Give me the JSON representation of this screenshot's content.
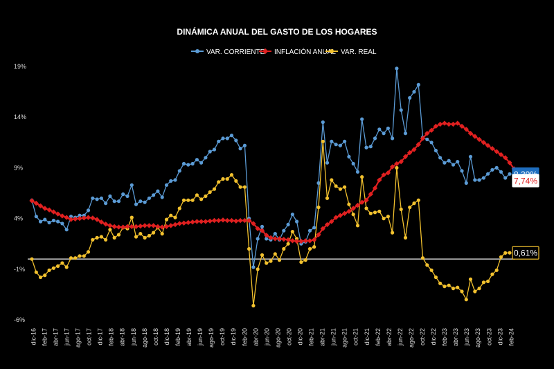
{
  "chart_data": {
    "type": "line",
    "title": "DINÁMICA ANUAL DEL GASTO DE LOS HOGARES",
    "ylim": [
      -6,
      19
    ],
    "y_ticks": [
      "19%",
      "14%",
      "9%",
      "4%",
      "-1%",
      "-6%"
    ],
    "y_tick_values": [
      19,
      14,
      9,
      4,
      -1,
      -6
    ],
    "x_tick_labels": [
      "dic-16",
      "feb-17",
      "abr-17",
      "jun-17",
      "ago-17",
      "oct-17",
      "dic-17",
      "feb-18",
      "abr-18",
      "jun-18",
      "ago-18",
      "oct-18",
      "dic-18",
      "feb-19",
      "abr-19",
      "jun-19",
      "ago-19",
      "oct-19",
      "dic-19",
      "feb-20",
      "abr-20",
      "jun-20",
      "ago-20",
      "oct-20",
      "dic-20",
      "feb-21",
      "abr-21",
      "jun-21",
      "ago-21",
      "oct-21",
      "dic-21",
      "feb-22",
      "abr-22",
      "jun-22",
      "ago-22",
      "oct-22",
      "dic-22",
      "feb-23",
      "abr-23",
      "jun-23",
      "ago-23",
      "oct-23",
      "dic-23",
      "feb-24"
    ],
    "reference_line": 0,
    "series": [
      {
        "name": "VAR. CORRIENTE",
        "color": "#5b9bd5",
        "end_label": "8,39%",
        "values": [
          5.8,
          4.2,
          3.7,
          3.9,
          3.6,
          3.8,
          3.7,
          3.5,
          2.9,
          4.2,
          4.1,
          4.3,
          4.3,
          4.8,
          6.0,
          5.9,
          6.0,
          5.5,
          6.2,
          5.7,
          5.7,
          6.4,
          6.2,
          7.3,
          5.4,
          5.7,
          5.6,
          6.0,
          6.3,
          6.7,
          6.1,
          7.3,
          7.7,
          7.8,
          8.7,
          9.4,
          9.3,
          9.4,
          9.8,
          9.5,
          10.0,
          10.6,
          10.8,
          11.6,
          11.9,
          11.9,
          12.2,
          11.7,
          10.9,
          11.2,
          4.0,
          -0.8,
          2.0,
          3.2,
          2.0,
          1.9,
          2.5,
          1.9,
          2.8,
          3.4,
          4.4,
          3.7,
          1.5,
          1.7,
          2.8,
          3.1,
          7.5,
          13.5,
          9.5,
          11.6,
          11.3,
          11.2,
          11.6,
          10.1,
          9.4,
          8.6,
          13.8,
          11.0,
          11.1,
          11.9,
          12.8,
          12.4,
          12.9,
          11.9,
          18.8,
          14.7,
          12.4,
          15.9,
          16.5,
          17.2,
          12.0,
          11.8,
          11.5,
          10.7,
          10.0,
          9.5,
          9.7,
          9.3,
          9.6,
          8.7,
          7.5,
          10.1,
          7.8,
          7.8,
          8.0,
          8.4,
          8.8,
          9.0,
          8.6,
          8.0,
          8.39
        ]
      },
      {
        "name": "INFLACIÓN ANUAL",
        "color": "#e02020",
        "end_label": "7,74%",
        "values": [
          5.75,
          5.5,
          5.25,
          5.0,
          4.85,
          4.65,
          4.45,
          4.25,
          4.1,
          3.9,
          3.95,
          4.0,
          4.05,
          4.1,
          4.05,
          3.9,
          3.65,
          3.45,
          3.3,
          3.2,
          3.15,
          3.15,
          3.2,
          3.2,
          3.2,
          3.25,
          3.3,
          3.3,
          3.3,
          3.2,
          3.15,
          3.2,
          3.3,
          3.4,
          3.5,
          3.55,
          3.6,
          3.65,
          3.7,
          3.7,
          3.7,
          3.75,
          3.8,
          3.8,
          3.85,
          3.8,
          3.8,
          3.75,
          3.8,
          3.8,
          3.8,
          3.5,
          3.0,
          2.8,
          2.35,
          2.1,
          2.0,
          2.0,
          1.95,
          1.9,
          1.8,
          1.75,
          1.75,
          1.8,
          1.8,
          1.9,
          2.4,
          3.0,
          3.4,
          3.7,
          4.1,
          4.3,
          4.5,
          4.7,
          5.0,
          5.3,
          5.6,
          5.8,
          6.4,
          7.0,
          7.8,
          8.3,
          8.5,
          9.1,
          9.4,
          9.6,
          10.1,
          10.5,
          10.8,
          11.3,
          11.9,
          12.4,
          12.7,
          13.1,
          13.3,
          13.4,
          13.3,
          13.3,
          13.4,
          13.1,
          12.8,
          12.4,
          12.1,
          11.8,
          11.5,
          11.2,
          10.9,
          10.6,
          10.3,
          10.0,
          9.5,
          8.9,
          8.0,
          7.74
        ]
      },
      {
        "name": "VAR. REAL",
        "color": "#f2c12e",
        "end_label": "0,61%",
        "values": [
          0.0,
          -1.3,
          -1.8,
          -1.6,
          -1.1,
          -0.9,
          -0.7,
          -0.4,
          -0.8,
          0.1,
          0.1,
          0.3,
          0.3,
          0.7,
          1.9,
          2.1,
          2.2,
          1.9,
          2.9,
          2.1,
          2.4,
          3.1,
          3.0,
          4.1,
          2.2,
          2.5,
          2.1,
          2.3,
          2.6,
          3.1,
          2.5,
          3.9,
          4.3,
          4.1,
          5.0,
          5.8,
          5.8,
          5.8,
          6.3,
          5.9,
          6.2,
          6.6,
          6.9,
          7.6,
          7.9,
          7.9,
          8.3,
          7.7,
          7.1,
          7.1,
          1.0,
          -4.6,
          -1.0,
          0.4,
          -0.4,
          -0.2,
          0.5,
          -0.1,
          1.0,
          1.5,
          2.7,
          2.0,
          -0.3,
          -0.1,
          1.0,
          1.2,
          5.1,
          11.6,
          6.0,
          7.8,
          7.2,
          6.9,
          7.1,
          5.4,
          4.4,
          3.3,
          8.1,
          5.0,
          4.5,
          4.6,
          4.7,
          4.0,
          4.2,
          2.6,
          9.0,
          4.9,
          2.1,
          5.1,
          5.5,
          5.8,
          0.1,
          -0.6,
          -1.1,
          -1.8,
          -2.4,
          -2.7,
          -2.6,
          -2.9,
          -2.8,
          -3.2,
          -4.0,
          -2.0,
          -3.2,
          -2.9,
          -2.3,
          -2.2,
          -1.5,
          -1.1,
          0.2,
          0.6,
          0.61
        ]
      }
    ]
  }
}
